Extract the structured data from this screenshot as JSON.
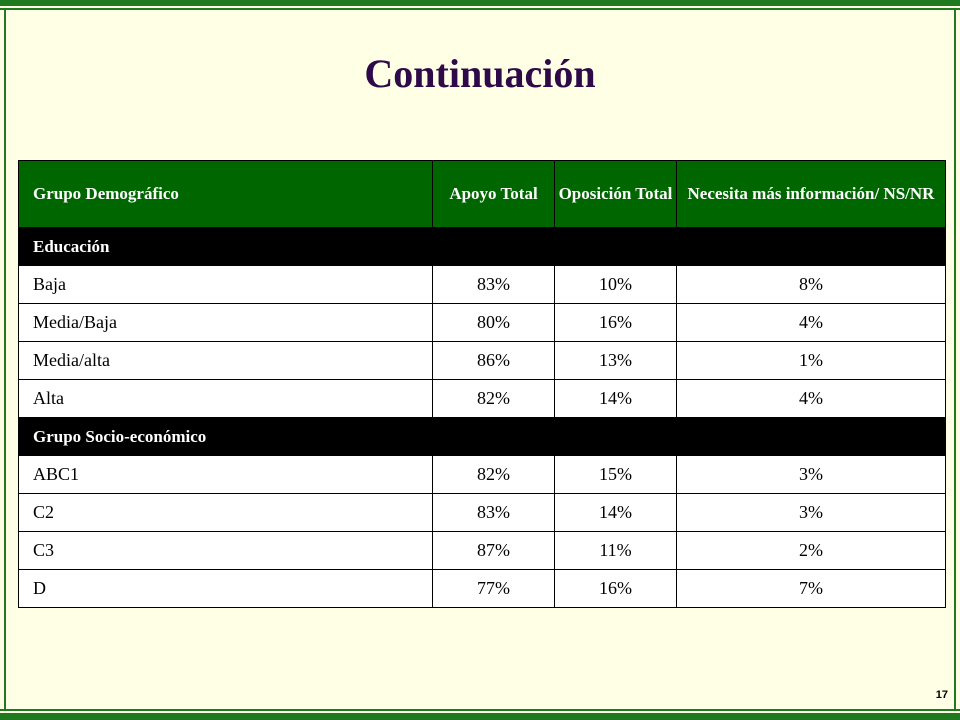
{
  "page": {
    "title": "Continuación",
    "page_number": "17"
  },
  "table": {
    "headers": [
      "Grupo Demográfico",
      "Apoyo Total",
      "Oposición Total",
      "Necesita más información/ NS/NR"
    ],
    "groups": [
      {
        "name": "Educación",
        "rows": [
          [
            "Baja",
            "83%",
            "10%",
            "8%"
          ],
          [
            "Media/Baja",
            "80%",
            "16%",
            "4%"
          ],
          [
            "Media/alta",
            "86%",
            "13%",
            "1%"
          ],
          [
            "Alta",
            "82%",
            "14%",
            "4%"
          ]
        ]
      },
      {
        "name": "Grupo Socio-económico",
        "rows": [
          [
            "ABC1",
            "82%",
            "15%",
            "3%"
          ],
          [
            "C2",
            "83%",
            "14%",
            "3%"
          ],
          [
            "C3",
            "87%",
            "11%",
            "2%"
          ],
          [
            "D",
            "77%",
            "16%",
            "7%"
          ]
        ]
      }
    ]
  },
  "colors": {
    "header_bg": "#006600",
    "group_bg": "#000000",
    "frame": "#1f7a1f",
    "title": "#2e0a4a",
    "page_bg": "#ffffe5"
  }
}
